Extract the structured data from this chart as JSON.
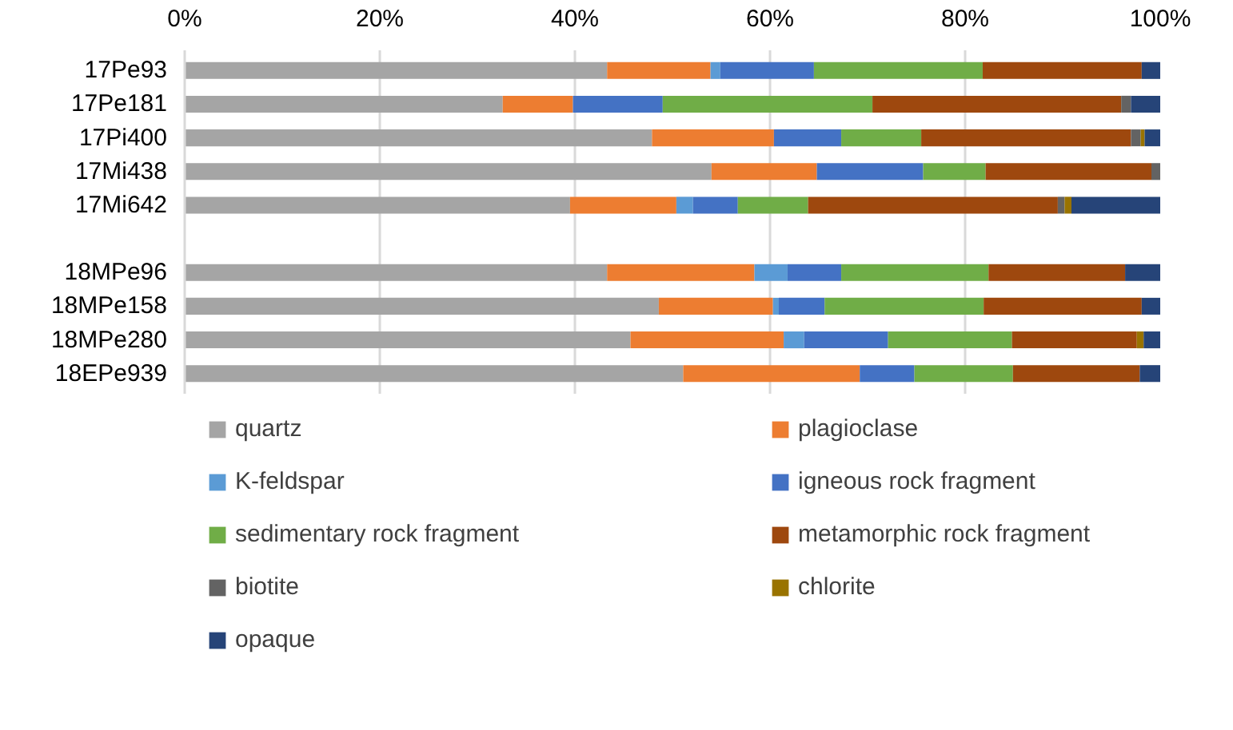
{
  "chart_data": {
    "type": "bar",
    "orientation": "horizontal",
    "stacked": true,
    "categories": [
      "17Pe93",
      "17Pe181",
      "17Pi400",
      "17Mi438",
      "17Mi642",
      null,
      "18MPe96",
      "18MPe158",
      "18MPe280",
      "18EPe939"
    ],
    "xlim": [
      0,
      100
    ],
    "xticks": [
      {
        "value": 0,
        "label": "0%"
      },
      {
        "value": 20,
        "label": "20%"
      },
      {
        "value": 40,
        "label": "40%"
      },
      {
        "value": 60,
        "label": "60%"
      },
      {
        "value": 80,
        "label": "80%"
      },
      {
        "value": 100,
        "label": "100%"
      }
    ],
    "grid": "x",
    "legend": "bottom",
    "series": [
      {
        "name": "quartz",
        "color": "#a5a5a5",
        "values": [
          43.3,
          32.6,
          47.9,
          54.0,
          39.5,
          null,
          43.3,
          48.6,
          45.7,
          51.1
        ]
      },
      {
        "name": "plagioclase",
        "color": "#ed7d31",
        "values": [
          10.6,
          7.2,
          12.5,
          10.8,
          10.9,
          null,
          15.1,
          11.7,
          15.7,
          18.1
        ]
      },
      {
        "name": "K-feldspar",
        "color": "#5b9bd5",
        "values": [
          1.0,
          0,
          0,
          0,
          1.7,
          null,
          3.4,
          0.6,
          2.1,
          0
        ]
      },
      {
        "name": "igneous rock fragment",
        "color": "#4472c4",
        "values": [
          9.6,
          9.2,
          6.9,
          10.9,
          4.6,
          null,
          5.5,
          4.7,
          8.6,
          5.6
        ]
      },
      {
        "name": "sedimentary rock fragment",
        "color": "#70ad47",
        "values": [
          17.3,
          21.5,
          8.2,
          6.4,
          7.2,
          null,
          15.1,
          16.3,
          12.7,
          10.1
        ]
      },
      {
        "name": "metamorphic rock fragment",
        "color": "#9e480e",
        "values": [
          16.3,
          25.5,
          21.5,
          17.0,
          25.6,
          null,
          14.0,
          16.2,
          12.8,
          13.0
        ]
      },
      {
        "name": "biotite",
        "color": "#636363",
        "values": [
          0,
          1.0,
          1.0,
          0.9,
          0.7,
          null,
          0,
          0,
          0,
          0
        ]
      },
      {
        "name": "chlorite",
        "color": "#997300",
        "values": [
          0,
          0,
          0.4,
          0,
          0.7,
          null,
          0,
          0,
          0.7,
          0
        ]
      },
      {
        "name": "opaque",
        "color": "#264478",
        "values": [
          1.9,
          3.0,
          1.6,
          0,
          9.1,
          null,
          3.6,
          1.9,
          1.7,
          2.1
        ]
      }
    ]
  }
}
